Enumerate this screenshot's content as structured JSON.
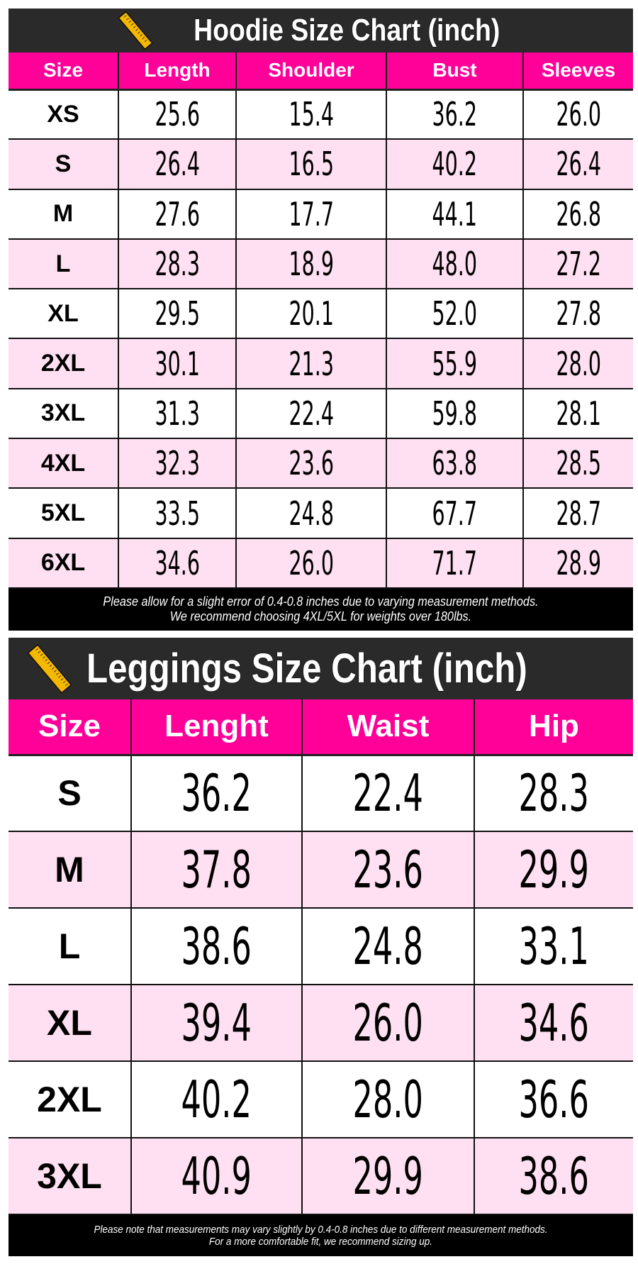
{
  "colors": {
    "title_bg": "#2a2a2a",
    "header_bg": "#ff0099",
    "alt_row": "#ffdff2",
    "footer_bg": "#000000"
  },
  "hoodie": {
    "icon": "ruler-icon",
    "title": "Hoodie Size Chart (inch)",
    "columns": [
      "Size",
      "Length",
      "Shoulder",
      "Bust",
      "Sleeves"
    ],
    "rows": [
      [
        "XS",
        "25.6",
        "15.4",
        "36.2",
        "26.0"
      ],
      [
        "S",
        "26.4",
        "16.5",
        "40.2",
        "26.4"
      ],
      [
        "M",
        "27.6",
        "17.7",
        "44.1",
        "26.8"
      ],
      [
        "L",
        "28.3",
        "18.9",
        "48.0",
        "27.2"
      ],
      [
        "XL",
        "29.5",
        "20.1",
        "52.0",
        "27.8"
      ],
      [
        "2XL",
        "30.1",
        "21.3",
        "55.9",
        "28.0"
      ],
      [
        "3XL",
        "31.3",
        "22.4",
        "59.8",
        "28.1"
      ],
      [
        "4XL",
        "32.3",
        "23.6",
        "63.8",
        "28.5"
      ],
      [
        "5XL",
        "33.5",
        "24.8",
        "67.7",
        "28.7"
      ],
      [
        "6XL",
        "34.6",
        "26.0",
        "71.7",
        "28.9"
      ]
    ],
    "notes": [
      "Please allow for a slight error of 0.4-0.8 inches due to varying measurement methods.",
      "We recommend choosing 4XL/5XL for weights over 180lbs."
    ]
  },
  "leggings": {
    "icon": "ruler-icon",
    "title": "Leggings Size Chart (inch)",
    "columns": [
      "Size",
      "Lenght",
      "Waist",
      "Hip"
    ],
    "rows": [
      [
        "S",
        "36.2",
        "22.4",
        "28.3"
      ],
      [
        "M",
        "37.8",
        "23.6",
        "29.9"
      ],
      [
        "L",
        "38.6",
        "24.8",
        "33.1"
      ],
      [
        "XL",
        "39.4",
        "26.0",
        "34.6"
      ],
      [
        "2XL",
        "40.2",
        "28.0",
        "36.6"
      ],
      [
        "3XL",
        "40.9",
        "29.9",
        "38.6"
      ]
    ],
    "notes": [
      "Please note that measurements may vary slightly by 0.4-0.8 inches due to different measurement methods.",
      "For a more comfortable fit, we recommend sizing up."
    ]
  }
}
